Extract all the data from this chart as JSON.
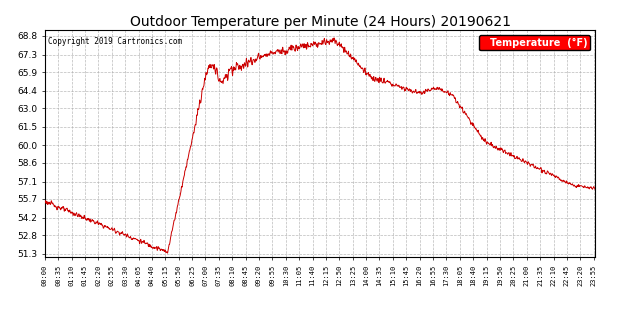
{
  "title": "Outdoor Temperature per Minute (24 Hours) 20190621",
  "copyright_text": "Copyright 2019 Cartronics.com",
  "legend_label": "Temperature  (°F)",
  "line_color": "#cc0000",
  "background_color": "#ffffff",
  "plot_bg_color": "#ffffff",
  "grid_color": "#aaaaaa",
  "yticks": [
    51.3,
    52.8,
    54.2,
    55.7,
    57.1,
    58.6,
    60.0,
    61.5,
    63.0,
    64.4,
    65.9,
    67.3,
    68.8
  ],
  "ylim": [
    51.0,
    69.3
  ],
  "xtick_labels": [
    "00:00",
    "00:35",
    "01:10",
    "01:45",
    "02:20",
    "02:55",
    "03:30",
    "04:05",
    "04:40",
    "05:15",
    "05:50",
    "06:25",
    "07:00",
    "07:35",
    "08:10",
    "08:45",
    "09:20",
    "09:55",
    "10:30",
    "11:05",
    "11:40",
    "12:15",
    "12:50",
    "13:25",
    "14:00",
    "14:35",
    "15:10",
    "15:45",
    "16:20",
    "16:55",
    "17:30",
    "18:05",
    "18:40",
    "19:15",
    "19:50",
    "20:25",
    "21:00",
    "21:35",
    "22:10",
    "22:45",
    "23:20",
    "23:55"
  ],
  "legend_bg": "#ff0000",
  "legend_text_color": "#ffffff"
}
